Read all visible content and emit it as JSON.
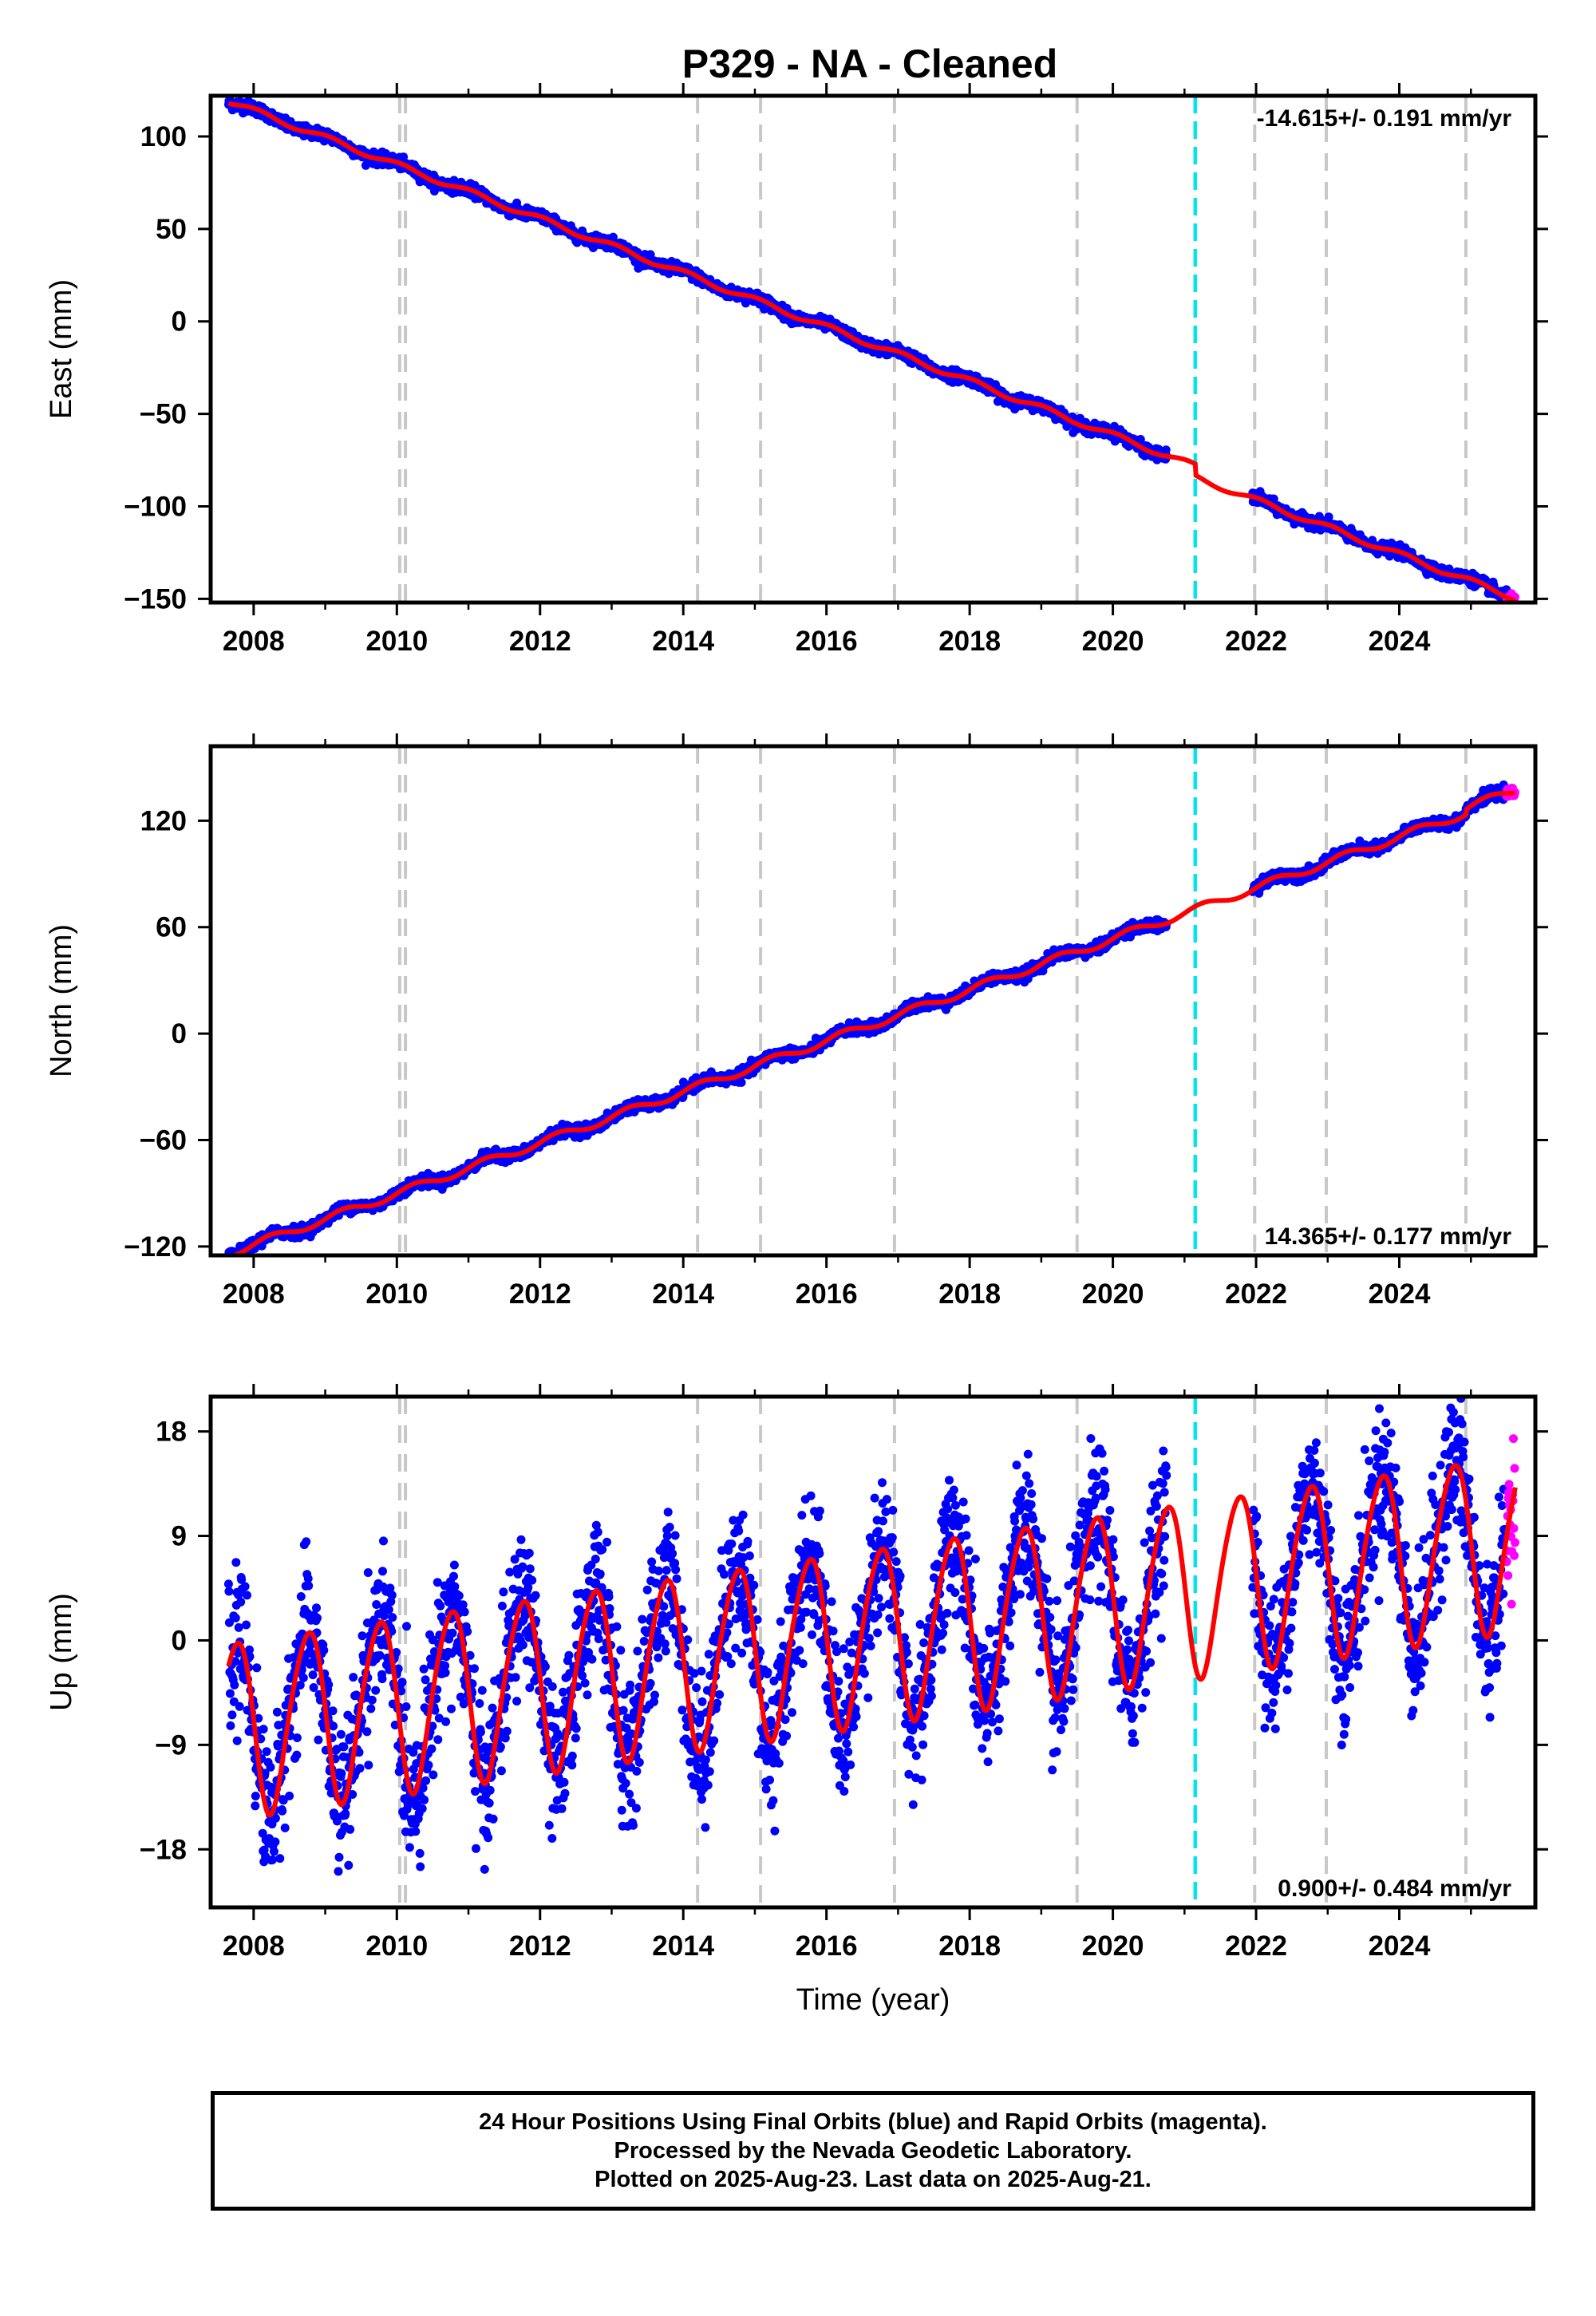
{
  "figure": {
    "title": "P329  - NA - Cleaned",
    "colors": {
      "final_orbits": "#0000ff",
      "rapid_orbits": "#ff00ff",
      "model": "#ff0000",
      "vline_gray": "#c8c8c8",
      "vline_cyan": "#00e5ee"
    }
  },
  "footer": {
    "line1": "24 Hour Positions Using Final Orbits (blue) and Rapid Orbits (magenta).",
    "line2": "Processed by the Nevada Geodetic Laboratory.",
    "line3": "Plotted on 2025-Aug-23. Last data on 2025-Aug-21."
  },
  "chart_data": [
    {
      "type": "scatter",
      "name": "east",
      "ylabel": "East (mm)",
      "xlabel": "",
      "xlim": [
        2007.4,
        2025.9
      ],
      "ylim": [
        -152,
        122
      ],
      "xticks": [
        "2008",
        "2010",
        "2012",
        "2014",
        "2016",
        "2018",
        "2020",
        "2022",
        "2024"
      ],
      "yticks": [
        "−150",
        "−100",
        "−50",
        "0",
        "50",
        "100"
      ],
      "ytick_values": [
        -150,
        -100,
        -50,
        0,
        50,
        100
      ],
      "rate_text": "-14.615+/- 0.191 mm/yr",
      "rate_position": "top-right",
      "equipment_changes": [
        2010.04,
        2010.12,
        2014.2,
        2015.08,
        2016.95,
        2019.5,
        2021.98,
        2022.98,
        2024.93
      ],
      "gap_marker": 2021.15,
      "data_gap": [
        2020.75,
        2021.95
      ],
      "model": {
        "offset": -3,
        "trend": -14.615,
        "annual_amp": 1.5,
        "annual_phase": 0.2,
        "semiannual_amp": 0,
        "semiannual_phase": 0,
        "steps": [
          [
            2021.15,
            -6
          ]
        ]
      },
      "scatter": 1.5,
      "data_range": [
        2007.65,
        2025.62
      ],
      "rapid_from": 2025.5
    },
    {
      "type": "scatter",
      "name": "north",
      "ylabel": "North (mm)",
      "xlabel": "",
      "xlim": [
        2007.4,
        2025.9
      ],
      "ylim": [
        -125,
        162
      ],
      "xticks": [
        "2008",
        "2010",
        "2012",
        "2014",
        "2016",
        "2018",
        "2020",
        "2022",
        "2024"
      ],
      "yticks": [
        "−120",
        "−60",
        "0",
        "60",
        "120"
      ],
      "ytick_values": [
        -120,
        -60,
        0,
        60,
        120
      ],
      "rate_text": "14.365+/- 0.177 mm/yr",
      "rate_position": "bottom-right",
      "equipment_changes": [
        2010.04,
        2010.12,
        2014.2,
        2015.08,
        2016.95,
        2019.5,
        2021.98,
        2022.98,
        2024.93
      ],
      "gap_marker": 2021.15,
      "data_gap": [
        2020.75,
        2021.95
      ],
      "model": {
        "offset": -4,
        "trend": 14.365,
        "annual_amp": 2.2,
        "annual_phase": 0.0,
        "semiannual_amp": 0,
        "semiannual_phase": 0,
        "steps": [
          [
            2024.93,
            3
          ]
        ]
      },
      "scatter": 1.5,
      "data_range": [
        2007.65,
        2025.62
      ],
      "rapid_from": 2025.5
    },
    {
      "type": "scatter",
      "name": "up",
      "ylabel": "Up (mm)",
      "xlabel": "Time (year)",
      "xlim": [
        2007.4,
        2025.9
      ],
      "ylim": [
        -23,
        21
      ],
      "xticks": [
        "2008",
        "2010",
        "2012",
        "2014",
        "2016",
        "2018",
        "2020",
        "2022",
        "2024"
      ],
      "yticks": [
        "−18",
        "−9",
        "0",
        "9",
        "18"
      ],
      "ytick_values": [
        -18,
        -9,
        0,
        9,
        18
      ],
      "rate_text": "0.900+/- 0.484 mm/yr",
      "rate_position": "bottom-right",
      "equipment_changes": [
        2010.04,
        2010.12,
        2014.2,
        2015.08,
        2016.95,
        2019.5,
        2021.98,
        2022.98,
        2024.93
      ],
      "gap_marker": 2021.15,
      "data_gap": [
        2020.75,
        2021.95
      ],
      "model": {
        "offset": 0,
        "trend": 0.9,
        "annual_amp": 7.5,
        "annual_phase": 0.5,
        "semiannual_amp": 0.8,
        "semiannual_phase": 0.2,
        "steps": []
      },
      "scatter": 3.0,
      "data_range": [
        2007.65,
        2025.62
      ],
      "rapid_from": 2025.5
    }
  ]
}
